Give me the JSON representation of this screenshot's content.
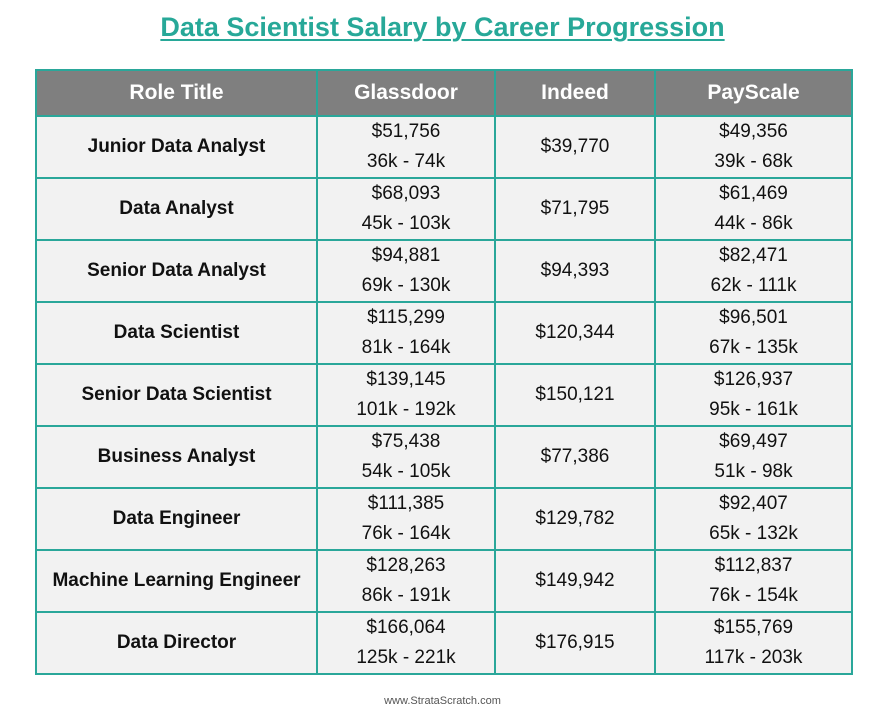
{
  "title": "Data Scientist Salary by Career Progression",
  "headers": [
    "Role Title",
    "Glassdoor",
    "Indeed",
    "PayScale"
  ],
  "rows": [
    {
      "role": "Junior Data Analyst",
      "glassdoor_avg": "$51,756",
      "glassdoor_range": "36k - 74k",
      "indeed": "$39,770",
      "payscale_avg": "$49,356",
      "payscale_range": "39k - 68k"
    },
    {
      "role": "Data Analyst",
      "glassdoor_avg": "$68,093",
      "glassdoor_range": "45k - 103k",
      "indeed": "$71,795",
      "payscale_avg": "$61,469",
      "payscale_range": "44k - 86k"
    },
    {
      "role": "Senior Data Analyst",
      "glassdoor_avg": "$94,881",
      "glassdoor_range": "69k - 130k",
      "indeed": "$94,393",
      "payscale_avg": "$82,471",
      "payscale_range": "62k - 111k"
    },
    {
      "role": "Data Scientist",
      "glassdoor_avg": "$115,299",
      "glassdoor_range": "81k - 164k",
      "indeed": "$120,344",
      "payscale_avg": "$96,501",
      "payscale_range": "67k - 135k"
    },
    {
      "role": "Senior Data Scientist",
      "glassdoor_avg": "$139,145",
      "glassdoor_range": "101k - 192k",
      "indeed": "$150,121",
      "payscale_avg": "$126,937",
      "payscale_range": "95k - 161k"
    },
    {
      "role": "Business Analyst",
      "glassdoor_avg": "$75,438",
      "glassdoor_range": "54k - 105k",
      "indeed": "$77,386",
      "payscale_avg": "$69,497",
      "payscale_range": "51k - 98k"
    },
    {
      "role": "Data Engineer",
      "glassdoor_avg": "$111,385",
      "glassdoor_range": "76k - 164k",
      "indeed": "$129,782",
      "payscale_avg": "$92,407",
      "payscale_range": "65k - 132k"
    },
    {
      "role": "Machine Learning Engineer",
      "glassdoor_avg": "$128,263",
      "glassdoor_range": "86k - 191k",
      "indeed": "$149,942",
      "payscale_avg": "$112,837",
      "payscale_range": "76k - 154k"
    },
    {
      "role": "Data Director",
      "glassdoor_avg": "$166,064",
      "glassdoor_range": "125k - 221k",
      "indeed": "$176,915",
      "payscale_avg": "$155,769",
      "payscale_range": "117k - 203k"
    }
  ],
  "footer": "www.StrataScratch.com",
  "colors": {
    "accent": "#27a898",
    "header_bg": "#7f7f7f",
    "cell_bg": "#f2f2f2"
  }
}
